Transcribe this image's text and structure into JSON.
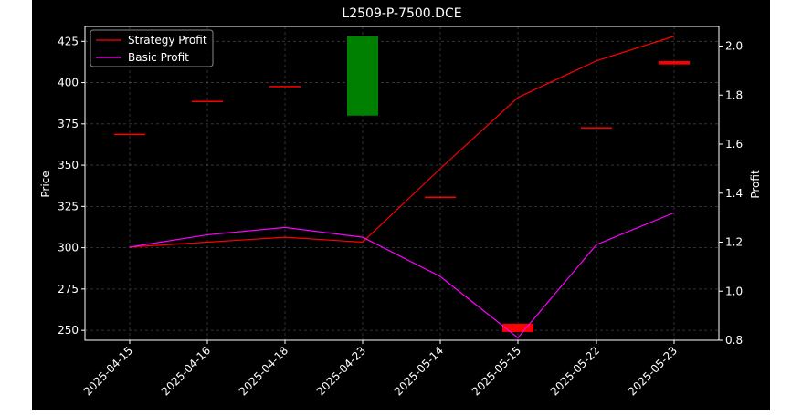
{
  "chart_data": {
    "type": "candlestick+line",
    "title": "L2509-P-7500.DCE",
    "xlabel": "",
    "ylabel_left": "Price",
    "ylabel_right": "Profit",
    "categories": [
      "2025-04-15",
      "2025-04-16",
      "2025-04-18",
      "2025-04-23",
      "2025-05-14",
      "2025-05-15",
      "2025-05-22",
      "2025-05-23"
    ],
    "left_axis": {
      "ylim": [
        244,
        434
      ],
      "ticks": [
        250,
        275,
        300,
        325,
        350,
        375,
        400,
        425
      ]
    },
    "right_axis": {
      "ylim": [
        0.8,
        2.08
      ],
      "ticks": [
        0.8,
        1.0,
        1.2,
        1.4,
        1.6,
        1.8,
        2.0
      ],
      "tick_labels": [
        "0.8",
        "1.0",
        "1.2",
        "1.4",
        "1.6",
        "1.8",
        "2.0"
      ]
    },
    "candles": [
      {
        "date": "2025-04-15",
        "open": 369,
        "close": 369,
        "color": "#ff0000"
      },
      {
        "date": "2025-04-16",
        "open": 389,
        "close": 389,
        "color": "#ff0000"
      },
      {
        "date": "2025-04-18",
        "open": 398,
        "close": 398,
        "color": "#ff0000"
      },
      {
        "date": "2025-04-23",
        "open": 380,
        "close": 428,
        "color": "#008000"
      },
      {
        "date": "2025-05-14",
        "open": 331,
        "close": 331,
        "color": "#ff0000"
      },
      {
        "date": "2025-05-15",
        "open": 254,
        "close": 249,
        "color": "#ff0000"
      },
      {
        "date": "2025-05-22",
        "open": 373,
        "close": 373,
        "color": "#ff0000"
      },
      {
        "date": "2025-05-23",
        "open": 413,
        "close": 411,
        "color": "#ff0000"
      }
    ],
    "series": [
      {
        "name": "Strategy Profit",
        "color": "#ff0000",
        "axis": "right",
        "values": [
          1.18,
          1.2,
          1.22,
          1.2,
          1.5,
          1.79,
          1.94,
          2.04
        ]
      },
      {
        "name": "Basic Profit",
        "color": "#ff00ff",
        "axis": "right",
        "values": [
          1.18,
          1.23,
          1.26,
          1.22,
          1.06,
          0.81,
          1.19,
          1.32
        ]
      }
    ],
    "legend_position": "top-left",
    "grid": true
  }
}
